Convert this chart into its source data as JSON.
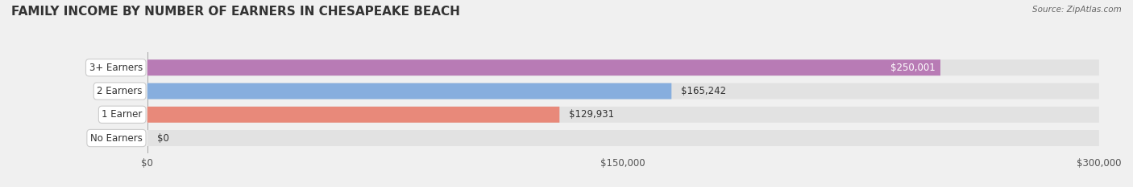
{
  "title": "FAMILY INCOME BY NUMBER OF EARNERS IN CHESAPEAKE BEACH",
  "source": "Source: ZipAtlas.com",
  "categories": [
    "No Earners",
    "1 Earner",
    "2 Earners",
    "3+ Earners"
  ],
  "values": [
    0,
    129931,
    165242,
    250001
  ],
  "labels": [
    "$0",
    "$129,931",
    "$165,242",
    "$250,001"
  ],
  "bar_colors": [
    "#f5c896",
    "#e8897a",
    "#87aede",
    "#b87bb5"
  ],
  "bg_color": "#f0f0f0",
  "bar_bg_color": "#e2e2e2",
  "xlim": [
    0,
    300000
  ],
  "xticks": [
    0,
    150000,
    300000
  ],
  "xtick_labels": [
    "$0",
    "$150,000",
    "$300,000"
  ],
  "title_fontsize": 11,
  "label_fontsize": 9,
  "bar_height": 0.55,
  "fig_width": 14.06,
  "fig_height": 2.33
}
